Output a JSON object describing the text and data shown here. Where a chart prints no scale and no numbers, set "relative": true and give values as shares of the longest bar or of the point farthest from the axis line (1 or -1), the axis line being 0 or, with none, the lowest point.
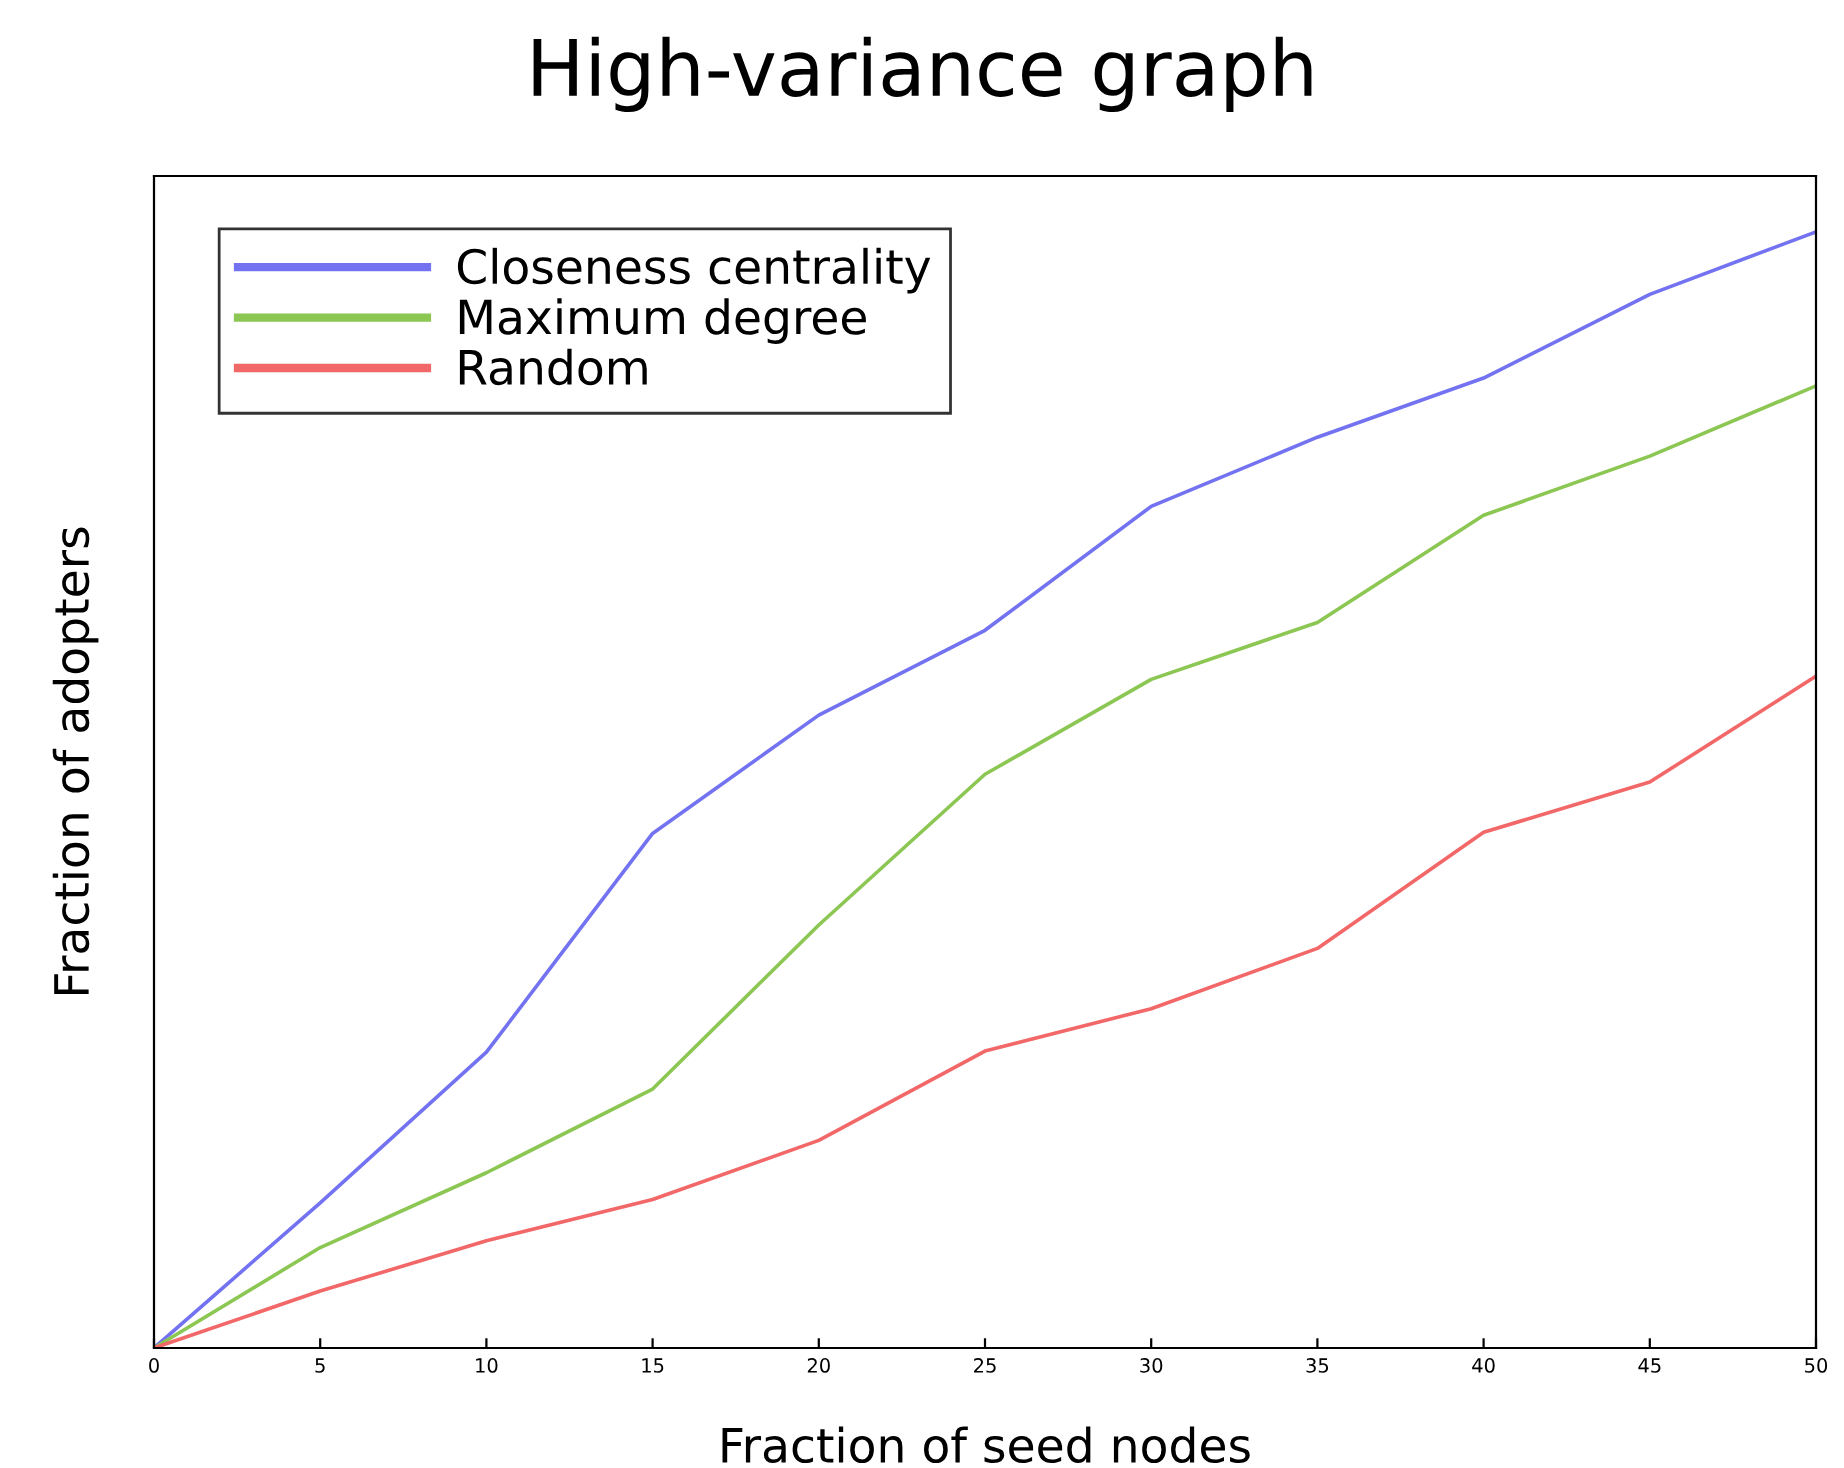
{
  "chart_data": {
    "type": "line",
    "title": "High-variance graph",
    "xlabel": "Fraction of seed nodes",
    "ylabel": "Fraction of adopters",
    "relative": true,
    "x": [
      0,
      5,
      10,
      15,
      20,
      25,
      30,
      35,
      40,
      45,
      50
    ],
    "xlim": [
      0,
      50
    ],
    "xticks": [
      0,
      5,
      10,
      15,
      20,
      25,
      30,
      35,
      40,
      45,
      50
    ],
    "series": [
      {
        "name": "Closeness centrality",
        "color": "#7373f2",
        "values": [
          0,
          0.13,
          0.265,
          0.461,
          0.567,
          0.643,
          0.754,
          0.816,
          0.869,
          0.944,
          1
        ]
      },
      {
        "name": "Maximum degree",
        "color": "#8cc653",
        "values": [
          0,
          0.09,
          0.157,
          0.232,
          0.379,
          0.514,
          0.599,
          0.65,
          0.746,
          0.799,
          0.862
        ]
      },
      {
        "name": "Random",
        "color": "#f26868",
        "values": [
          0,
          0.051,
          0.096,
          0.133,
          0.186,
          0.266,
          0.304,
          0.358,
          0.462,
          0.507,
          0.602
        ]
      }
    ],
    "legend": "top left",
    "grid": false,
    "marker": "none",
    "line_style": "solid"
  }
}
